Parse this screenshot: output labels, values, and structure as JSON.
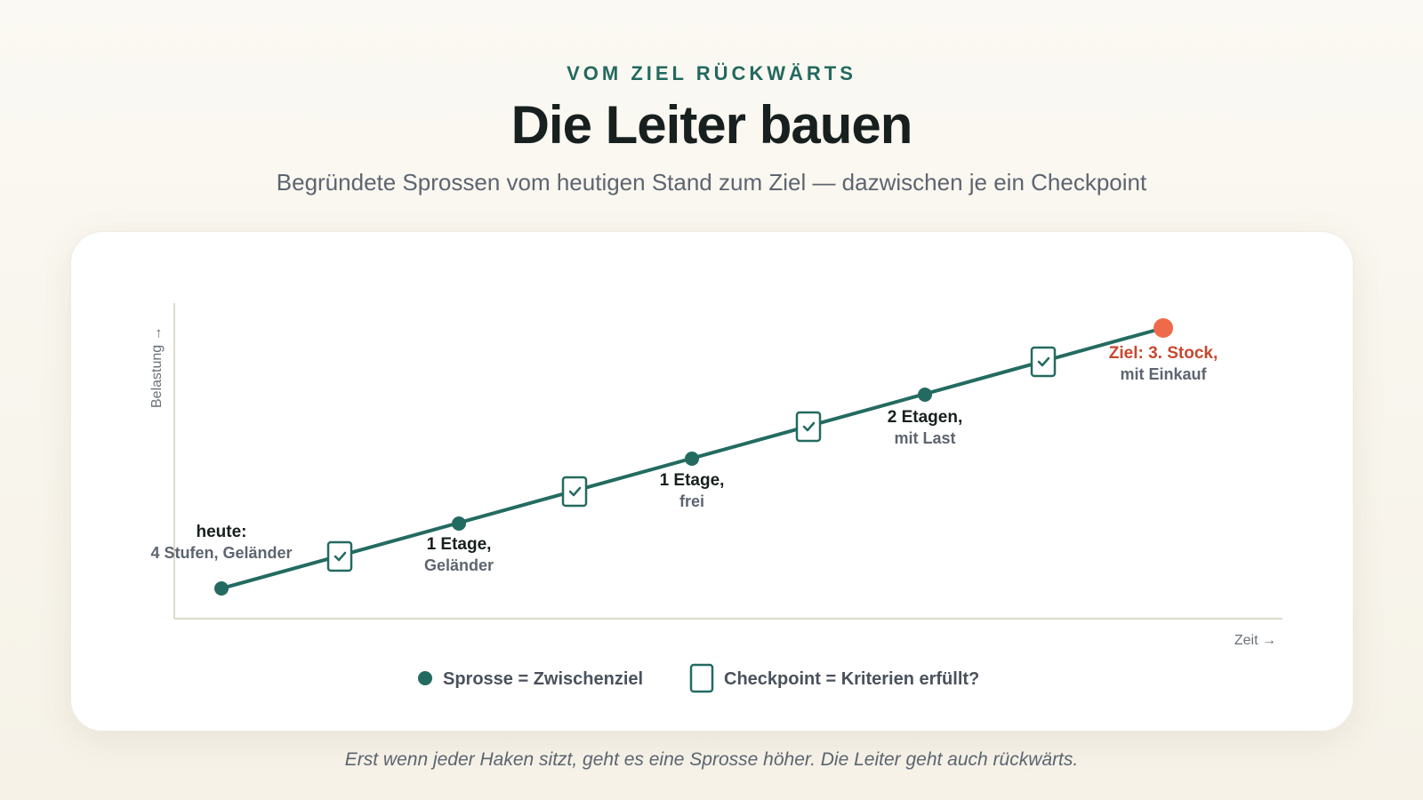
{
  "header": {
    "eyebrow": "VOM ZIEL RÜCKWÄRTS",
    "title": "Die Leiter bauen",
    "subtitle": "Begründete Sprossen vom heutigen Stand zum Ziel — dazwischen je ein Checkpoint"
  },
  "colors": {
    "line": "#236b60",
    "goal": "#ef6a4a",
    "goal_text": "#c8482e",
    "axis": "#dcdccc"
  },
  "chart": {
    "axis_y_label": "Belastung →",
    "axis_x_label": "Zeit →",
    "rungs": [
      {
        "line1": "heute:",
        "line2": "4 Stufen, Geländer"
      },
      {
        "line1": "1 Etage,",
        "line2": "Geländer"
      },
      {
        "line1": "1 Etage,",
        "line2": "frei"
      },
      {
        "line1": "2 Etagen,",
        "line2": "mit Last"
      },
      {
        "line1": "Ziel: 3. Stock,",
        "line2": "mit Einkauf"
      }
    ],
    "checkpoint_icon": "checkmark-icon",
    "legend": {
      "rung_label": "Sprosse = Zwischenziel",
      "checkpoint_label": "Checkpoint = Kriterien erfüllt?"
    }
  },
  "caption": "Erst wenn jeder Haken sitzt, geht es eine Sprosse höher. Die Leiter geht auch rückwärts."
}
